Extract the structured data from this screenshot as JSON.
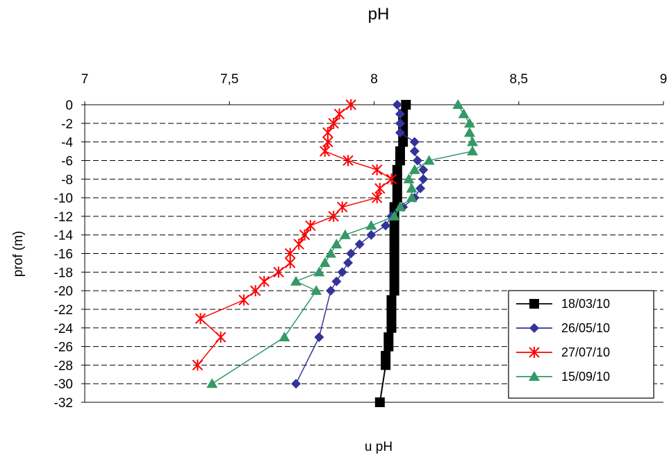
{
  "chart_data": {
    "type": "line",
    "title": "pH",
    "xlabel": "u pH",
    "ylabel": "prof (m)",
    "x_axis_position": "top",
    "xlim": [
      7,
      9
    ],
    "ylim": [
      -32,
      0
    ],
    "x_ticks": [
      7,
      7.5,
      8,
      8.5,
      9
    ],
    "x_tick_labels": [
      "7",
      "7,5",
      "8",
      "8,5",
      "9"
    ],
    "y_ticks": [
      0,
      -2,
      -4,
      -6,
      -8,
      -10,
      -12,
      -14,
      -16,
      -18,
      -20,
      -22,
      -24,
      -26,
      -28,
      -30,
      -32
    ],
    "y_tick_labels": [
      "0",
      "-2",
      "-4",
      "-6",
      "-8",
      "-10",
      "-12",
      "-14",
      "-16",
      "-18",
      "-20",
      "-22",
      "-24",
      "-26",
      "-28",
      "-30",
      "-32"
    ],
    "grid": "horizontal dashed",
    "legend_position": "bottom-right",
    "series": [
      {
        "name": "18/03/10",
        "color": "#000000",
        "marker": "square",
        "points": [
          [
            8.11,
            0
          ],
          [
            8.1,
            -1
          ],
          [
            8.1,
            -2
          ],
          [
            8.1,
            -3
          ],
          [
            8.1,
            -4
          ],
          [
            8.09,
            -5
          ],
          [
            8.09,
            -6
          ],
          [
            8.08,
            -7
          ],
          [
            8.08,
            -8
          ],
          [
            8.08,
            -9
          ],
          [
            8.08,
            -10
          ],
          [
            8.07,
            -11
          ],
          [
            8.07,
            -12
          ],
          [
            8.07,
            -13
          ],
          [
            8.07,
            -14
          ],
          [
            8.07,
            -15
          ],
          [
            8.07,
            -16
          ],
          [
            8.07,
            -17
          ],
          [
            8.07,
            -18
          ],
          [
            8.07,
            -19
          ],
          [
            8.07,
            -20
          ],
          [
            8.06,
            -21
          ],
          [
            8.06,
            -22
          ],
          [
            8.06,
            -23
          ],
          [
            8.06,
            -24
          ],
          [
            8.05,
            -25
          ],
          [
            8.05,
            -26
          ],
          [
            8.04,
            -27
          ],
          [
            8.04,
            -28
          ],
          [
            8.02,
            -32
          ]
        ]
      },
      {
        "name": "26/05/10",
        "color": "#333399",
        "marker": "diamond",
        "points": [
          [
            8.08,
            0
          ],
          [
            8.09,
            -1
          ],
          [
            8.09,
            -2
          ],
          [
            8.09,
            -3
          ],
          [
            8.14,
            -4
          ],
          [
            8.14,
            -5
          ],
          [
            8.15,
            -6
          ],
          [
            8.17,
            -7
          ],
          [
            8.17,
            -8
          ],
          [
            8.16,
            -9
          ],
          [
            8.14,
            -10
          ],
          [
            8.1,
            -11
          ],
          [
            8.06,
            -12
          ],
          [
            8.04,
            -13
          ],
          [
            7.99,
            -14
          ],
          [
            7.95,
            -15
          ],
          [
            7.92,
            -16
          ],
          [
            7.91,
            -17
          ],
          [
            7.89,
            -18
          ],
          [
            7.87,
            -19
          ],
          [
            7.85,
            -20
          ],
          [
            7.81,
            -25
          ],
          [
            7.73,
            -30
          ]
        ]
      },
      {
        "name": "27/07/10",
        "color": "#ff0000",
        "marker": "star",
        "points": [
          [
            7.92,
            0
          ],
          [
            7.88,
            -1
          ],
          [
            7.86,
            -2
          ],
          [
            7.84,
            -3
          ],
          [
            7.84,
            -4
          ],
          [
            7.83,
            -5
          ],
          [
            7.91,
            -6
          ],
          [
            8.01,
            -7
          ],
          [
            8.06,
            -8
          ],
          [
            8.02,
            -9
          ],
          [
            8.01,
            -10
          ],
          [
            7.89,
            -11
          ],
          [
            7.86,
            -12
          ],
          [
            7.78,
            -13
          ],
          [
            7.76,
            -14
          ],
          [
            7.74,
            -15
          ],
          [
            7.71,
            -16
          ],
          [
            7.71,
            -17
          ],
          [
            7.67,
            -18
          ],
          [
            7.62,
            -19
          ],
          [
            7.59,
            -20
          ],
          [
            7.55,
            -21
          ],
          [
            7.4,
            -23
          ],
          [
            7.47,
            -25
          ],
          [
            7.39,
            -28
          ]
        ]
      },
      {
        "name": "15/09/10",
        "color": "#339966",
        "marker": "triangle",
        "points": [
          [
            8.29,
            0
          ],
          [
            8.31,
            -1
          ],
          [
            8.33,
            -2
          ],
          [
            8.33,
            -3
          ],
          [
            8.34,
            -4
          ],
          [
            8.34,
            -5
          ],
          [
            8.19,
            -6
          ],
          [
            8.14,
            -7
          ],
          [
            8.12,
            -8
          ],
          [
            8.13,
            -9
          ],
          [
            8.13,
            -10
          ],
          [
            8.09,
            -11
          ],
          [
            8.07,
            -12
          ],
          [
            7.99,
            -13
          ],
          [
            7.9,
            -14
          ],
          [
            7.87,
            -15
          ],
          [
            7.85,
            -16
          ],
          [
            7.83,
            -17
          ],
          [
            7.81,
            -18
          ],
          [
            7.73,
            -19
          ],
          [
            7.8,
            -20
          ],
          [
            7.69,
            -25
          ],
          [
            7.44,
            -30
          ]
        ]
      }
    ]
  }
}
